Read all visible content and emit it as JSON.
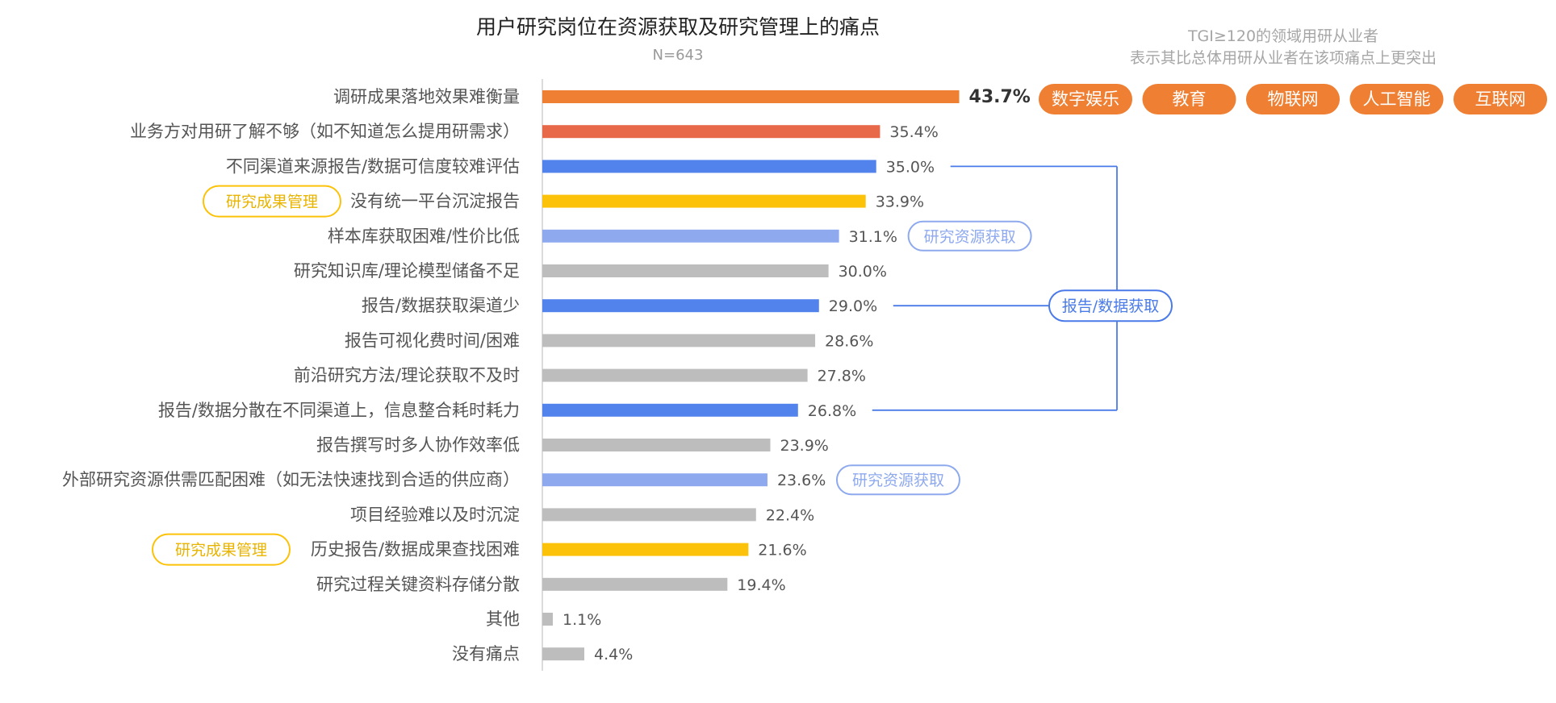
{
  "chart_data": {
    "type": "bar",
    "orientation": "horizontal",
    "title": "用户研究岗位在资源获取及研究管理上的痛点",
    "subtitle": "N=643",
    "xlim": [
      0,
      50
    ],
    "value_suffix": "%",
    "grid": false,
    "categories": [
      "调研成果落地效果难衡量",
      "业务方对用研了解不够（如不知道怎么提用研需求）",
      "不同渠道来源报告/数据可信度较难评估",
      "没有统一平台沉淀报告",
      "样本库获取困难/性价比低",
      "研究知识库/理论模型储备不足",
      "报告/数据获取渠道少",
      "报告可视化费时间/困难",
      "前沿研究方法/理论获取不及时",
      "报告/数据分散在不同渠道上，信息整合耗时耗力",
      "报告撰写时多人协作效率低",
      "外部研究资源供需匹配困难（如无法快速找到合适的供应商）",
      "项目经验难以及时沉淀",
      "历史报告/数据成果查找困难",
      "研究过程关键资料存储分散",
      "其他",
      "没有痛点"
    ],
    "values": [
      43.7,
      35.4,
      35.0,
      33.9,
      31.1,
      30.0,
      29.0,
      28.6,
      27.8,
      26.8,
      23.9,
      23.6,
      22.4,
      21.6,
      19.4,
      1.1,
      4.4
    ],
    "bar_colors": [
      "#ef7f33",
      "#e8684a",
      "#5282ec",
      "#fcc20a",
      "#8ea9ee",
      "#bdbdbd",
      "#5282ec",
      "#bdbdbd",
      "#bdbdbd",
      "#5282ec",
      "#bdbdbd",
      "#8ea9ee",
      "#bdbdbd",
      "#fcc20a",
      "#bdbdbd",
      "#bdbdbd",
      "#bdbdbd"
    ],
    "tgi_note": [
      "TGI≥120的领域用研从业者",
      "表示其比总体用研从业者在该项痛点上更突出"
    ],
    "tgi_domains": [
      "数字娱乐",
      "教育",
      "物联网",
      "人工智能",
      "互联网"
    ],
    "annotations": {
      "left_tags": [
        {
          "text": "研究成果管理",
          "category_index": 3
        },
        {
          "text": "研究成果管理",
          "category_index": 13
        }
      ],
      "right_tags": [
        {
          "text": "研究资源获取",
          "category_index": 4
        },
        {
          "text": "研究资源获取",
          "category_index": 11
        }
      ],
      "bracket": {
        "text": "报告/数据获取",
        "category_indices": [
          2,
          6,
          9
        ]
      }
    }
  },
  "colors": {
    "orange": "#ef7f33",
    "blue": "#5282ec",
    "light_blue": "#8ea9ee",
    "yellow": "#fcc20a",
    "gray": "#bdbdbd",
    "tag_blue_text": "#8ea9ee",
    "bracket_blue": "#4a7ae8",
    "pill_orange": "#ef7f33"
  }
}
